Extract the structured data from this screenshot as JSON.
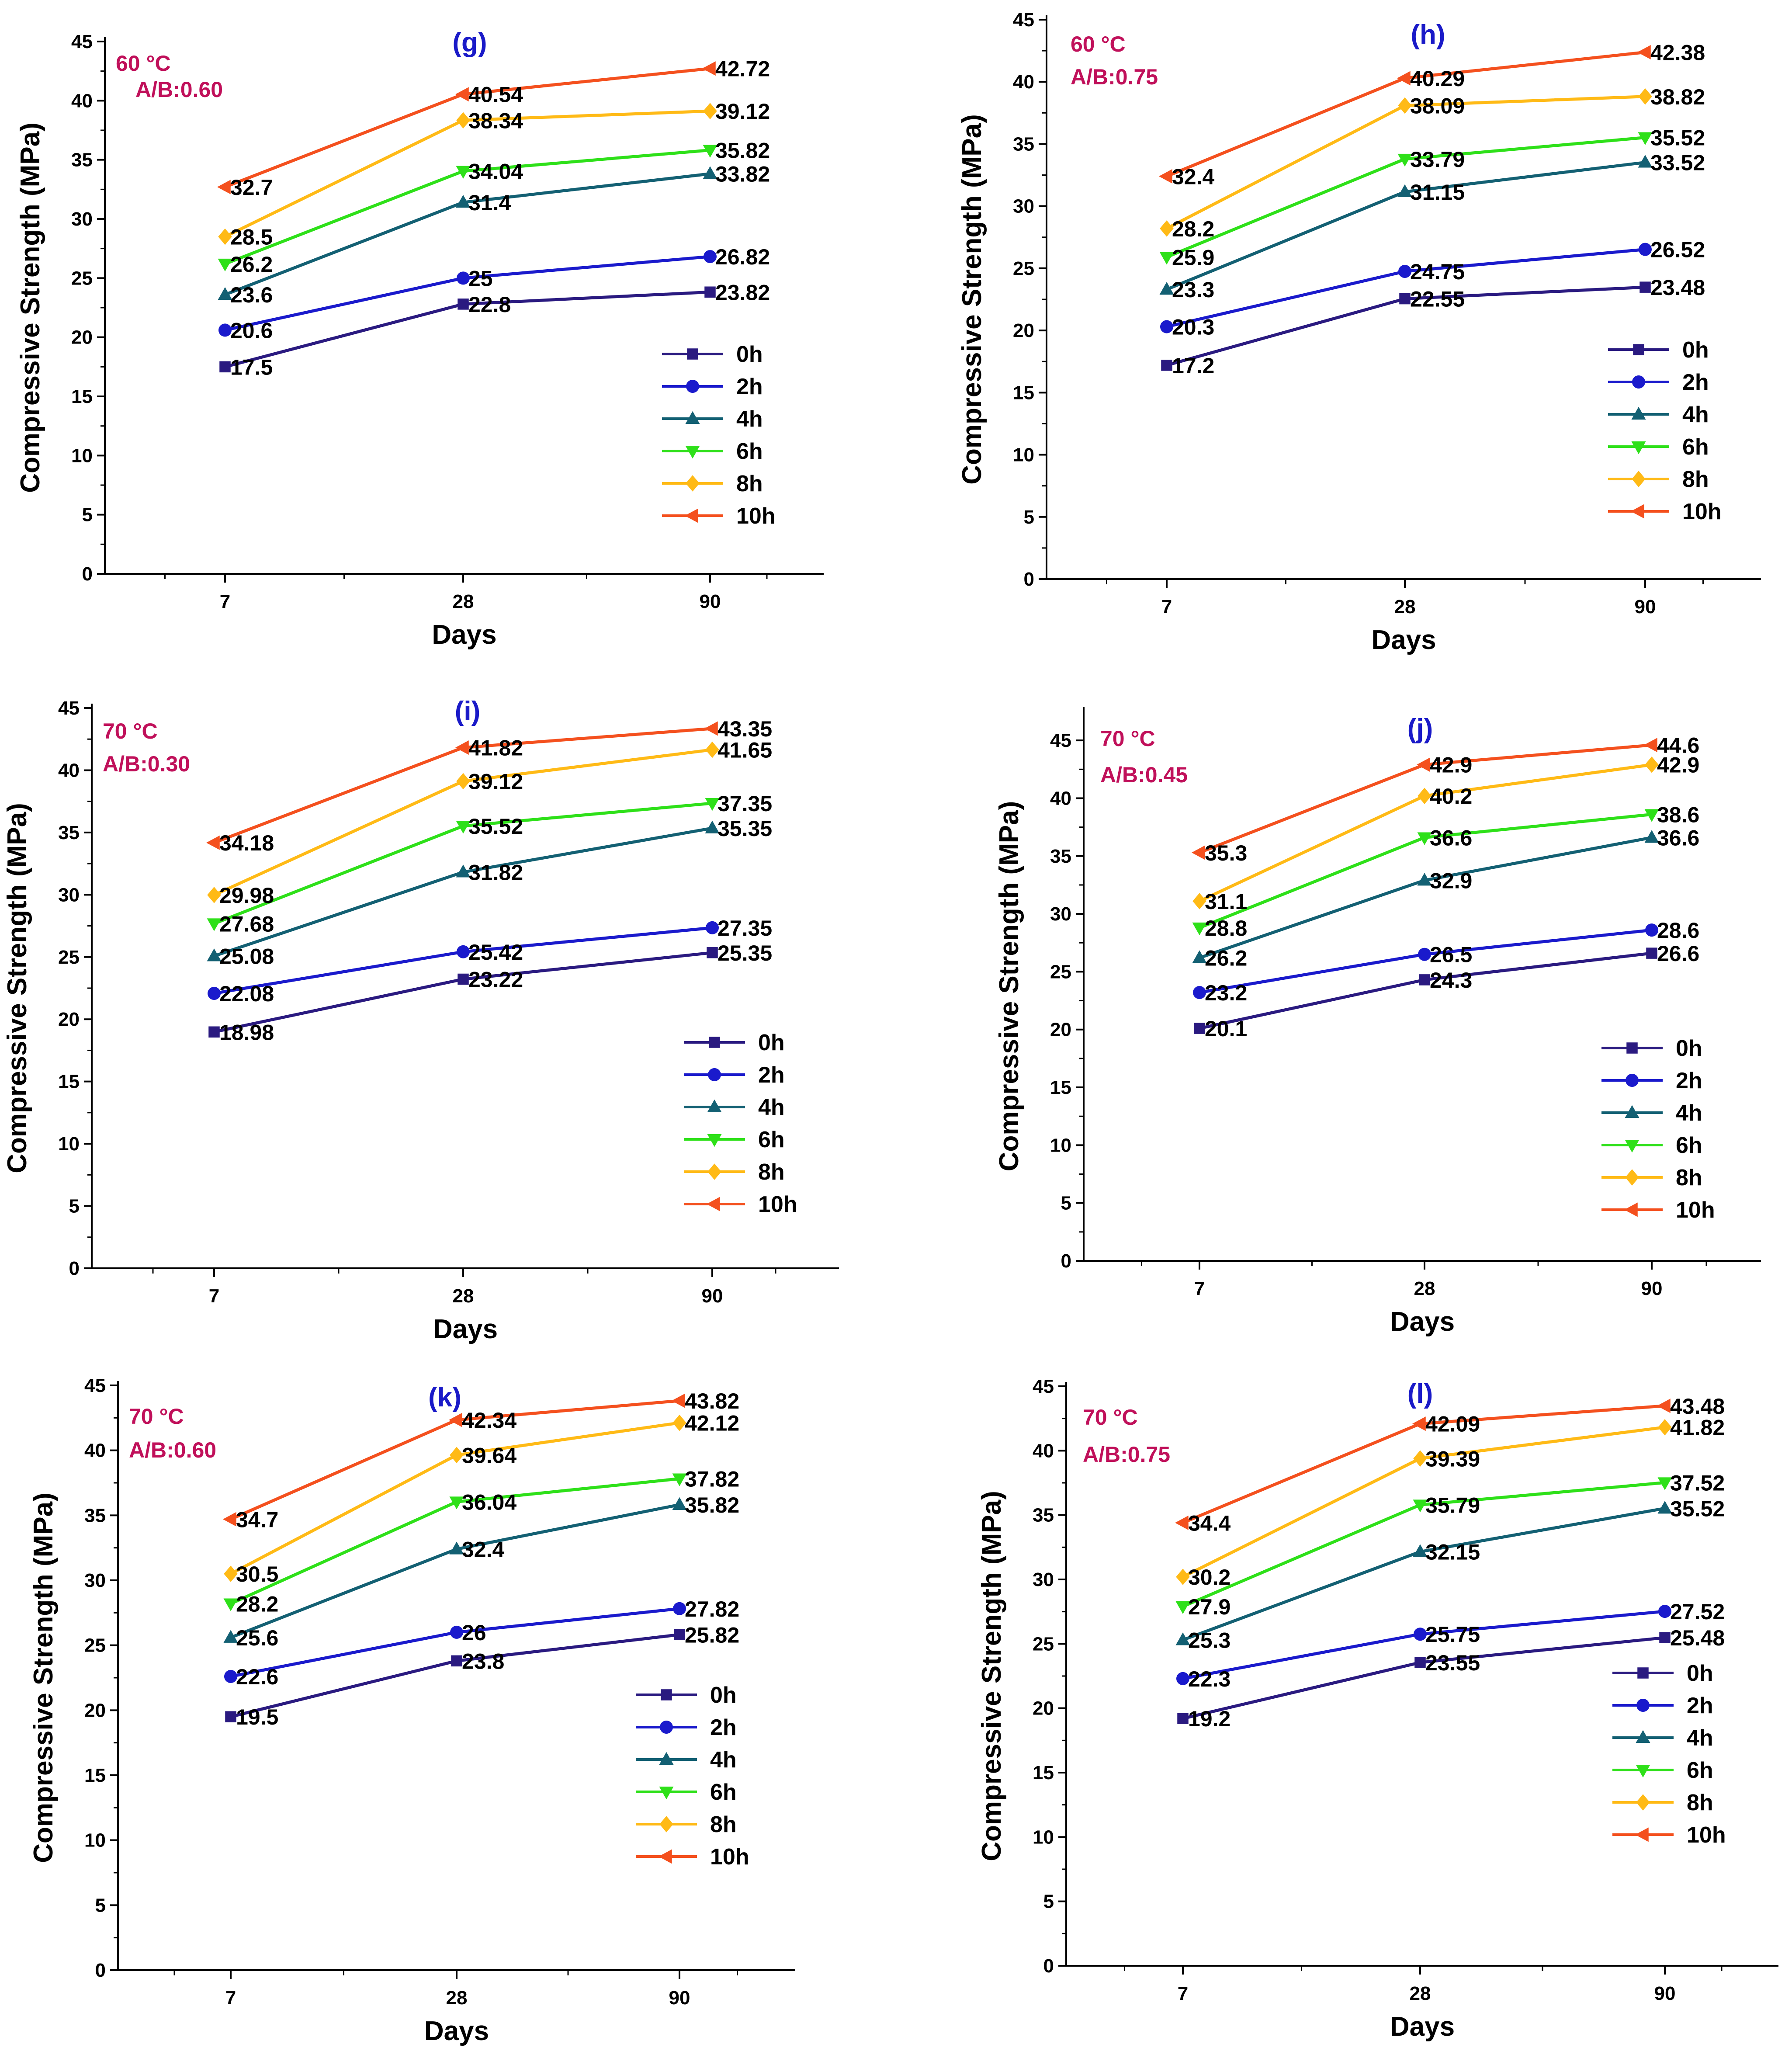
{
  "chart_data": [
    {
      "type": "line",
      "panel": "(g)",
      "temperature": "60 °C",
      "ab_ratio": "A/B:0.60",
      "categories": [
        "7",
        "28",
        "90"
      ],
      "xlabel": "Days",
      "ylabel": "Compressive Strength (MPa)",
      "ylim": [
        0,
        45
      ],
      "yticks": [
        0,
        5,
        10,
        15,
        20,
        25,
        30,
        35,
        40,
        45
      ],
      "legend": "bottom-right",
      "series": [
        {
          "name": "0h",
          "values": [
            17.5,
            22.8,
            23.82
          ],
          "labels": [
            "17.5",
            "22.8",
            "23.82"
          ]
        },
        {
          "name": "2h",
          "values": [
            20.6,
            25,
            26.82
          ],
          "labels": [
            "20.6",
            "25",
            "26.82"
          ]
        },
        {
          "name": "4h",
          "values": [
            23.6,
            31.4,
            33.82
          ],
          "labels": [
            "23.6",
            "31.4",
            "33.82"
          ]
        },
        {
          "name": "6h",
          "values": [
            26.2,
            34.04,
            35.82
          ],
          "labels": [
            "26.2",
            "34.04",
            "35.82"
          ]
        },
        {
          "name": "8h",
          "values": [
            28.5,
            38.34,
            39.12
          ],
          "labels": [
            "28.5",
            "38.34",
            "39.12"
          ]
        },
        {
          "name": "10h",
          "values": [
            32.7,
            40.54,
            42.72
          ],
          "labels": [
            "32.7",
            "40.54",
            "42.72"
          ]
        }
      ]
    },
    {
      "type": "line",
      "panel": "(h)",
      "temperature": "60 °C",
      "ab_ratio": "A/B:0.75",
      "categories": [
        "7",
        "28",
        "90"
      ],
      "xlabel": "Days",
      "ylabel": "Compressive Strength (MPa)",
      "ylim": [
        0,
        45
      ],
      "yticks": [
        0,
        5,
        10,
        15,
        20,
        25,
        30,
        35,
        40,
        45
      ],
      "legend": "bottom-right",
      "series": [
        {
          "name": "0h",
          "values": [
            17.2,
            22.55,
            23.48
          ],
          "labels": [
            "17.2",
            "22.55",
            "23.48"
          ]
        },
        {
          "name": "2h",
          "values": [
            20.3,
            24.75,
            26.52
          ],
          "labels": [
            "20.3",
            "24.75",
            "26.52"
          ]
        },
        {
          "name": "4h",
          "values": [
            23.3,
            31.15,
            33.52
          ],
          "labels": [
            "23.3",
            "31.15",
            "33.52"
          ]
        },
        {
          "name": "6h",
          "values": [
            25.9,
            33.79,
            35.52
          ],
          "labels": [
            "25.9",
            "33.79",
            "35.52"
          ]
        },
        {
          "name": "8h",
          "values": [
            28.2,
            38.09,
            38.82
          ],
          "labels": [
            "28.2",
            "38.09",
            "38.82"
          ]
        },
        {
          "name": "10h",
          "values": [
            32.4,
            40.29,
            42.38
          ],
          "labels": [
            "32.4",
            "40.29",
            "42.38"
          ]
        }
      ]
    },
    {
      "type": "line",
      "panel": "(i)",
      "temperature": "70 °C",
      "ab_ratio": "A/B:0.30",
      "categories": [
        "7",
        "28",
        "90"
      ],
      "xlabel": "Days",
      "ylabel": "Compressive Strength (MPa)",
      "ylim": [
        0,
        45
      ],
      "yticks": [
        0,
        5,
        10,
        15,
        20,
        25,
        30,
        35,
        40,
        45
      ],
      "legend": "bottom-right",
      "series": [
        {
          "name": "0h",
          "values": [
            18.98,
            23.22,
            25.35
          ],
          "labels": [
            "18.98",
            "23.22",
            "25.35"
          ]
        },
        {
          "name": "2h",
          "values": [
            22.08,
            25.42,
            27.35
          ],
          "labels": [
            "22.08",
            "25.42",
            "27.35"
          ]
        },
        {
          "name": "4h",
          "values": [
            25.08,
            31.82,
            35.35
          ],
          "labels": [
            "25.08",
            "31.82",
            "35.35"
          ]
        },
        {
          "name": "6h",
          "values": [
            27.68,
            35.52,
            37.35
          ],
          "labels": [
            "27.68",
            "35.52",
            "37.35"
          ]
        },
        {
          "name": "8h",
          "values": [
            29.98,
            39.12,
            41.65
          ],
          "labels": [
            "29.98",
            "39.12",
            "41.65"
          ]
        },
        {
          "name": "10h",
          "values": [
            34.18,
            41.82,
            43.35
          ],
          "labels": [
            "34.18",
            "41.82",
            "43.35"
          ]
        }
      ]
    },
    {
      "type": "line",
      "panel": "(j)",
      "temperature": "70 °C",
      "ab_ratio": "A/B:0.45",
      "categories": [
        "7",
        "28",
        "90"
      ],
      "xlabel": "Days",
      "ylabel": "Compressive Strength (MPa)",
      "ylim": [
        0,
        47.5
      ],
      "yticks": [
        0,
        5,
        10,
        15,
        20,
        25,
        30,
        35,
        40,
        45
      ],
      "legend": "bottom-right",
      "series": [
        {
          "name": "0h",
          "values": [
            20.1,
            24.3,
            26.6
          ],
          "labels": [
            "20.1",
            "24.3",
            "26.6"
          ]
        },
        {
          "name": "2h",
          "values": [
            23.2,
            26.5,
            28.6
          ],
          "labels": [
            "23.2",
            "26.5",
            "28.6"
          ]
        },
        {
          "name": "4h",
          "values": [
            26.2,
            32.9,
            36.6
          ],
          "labels": [
            "26.2",
            "32.9",
            "36.6"
          ]
        },
        {
          "name": "6h",
          "values": [
            28.8,
            36.6,
            38.6
          ],
          "labels": [
            "28.8",
            "36.6",
            "38.6"
          ]
        },
        {
          "name": "8h",
          "values": [
            31.1,
            40.2,
            42.9
          ],
          "labels": [
            "31.1",
            "40.2",
            "42.9"
          ]
        },
        {
          "name": "10h",
          "values": [
            35.3,
            42.9,
            44.6
          ],
          "labels": [
            "35.3",
            "42.9",
            "44.6"
          ]
        }
      ]
    },
    {
      "type": "line",
      "panel": "(k)",
      "temperature": "70 °C",
      "ab_ratio": "A/B:0.60",
      "categories": [
        "7",
        "28",
        "90"
      ],
      "xlabel": "Days",
      "ylabel": "Compressive Strength (MPa)",
      "ylim": [
        0,
        45
      ],
      "yticks": [
        0,
        5,
        10,
        15,
        20,
        25,
        30,
        35,
        40,
        45
      ],
      "legend": "bottom-right",
      "series": [
        {
          "name": "0h",
          "values": [
            19.5,
            23.8,
            25.82
          ],
          "labels": [
            "19.5",
            "23.8",
            "25.82"
          ]
        },
        {
          "name": "2h",
          "values": [
            22.6,
            26,
            27.82
          ],
          "labels": [
            "22.6",
            "26",
            "27.82"
          ]
        },
        {
          "name": "4h",
          "values": [
            25.6,
            32.4,
            35.82
          ],
          "labels": [
            "25.6",
            "32.4",
            "35.82"
          ]
        },
        {
          "name": "6h",
          "values": [
            28.2,
            36.04,
            37.82
          ],
          "labels": [
            "28.2",
            "36.04",
            "37.82"
          ]
        },
        {
          "name": "8h",
          "values": [
            30.5,
            39.64,
            42.12
          ],
          "labels": [
            "30.5",
            "39.64",
            "42.12"
          ]
        },
        {
          "name": "10h",
          "values": [
            34.7,
            42.34,
            43.82
          ],
          "labels": [
            "34.7",
            "42.34",
            "43.82"
          ]
        }
      ]
    },
    {
      "type": "line",
      "panel": "(l)",
      "temperature": "70 °C",
      "ab_ratio": "A/B:0.75",
      "categories": [
        "7",
        "28",
        "90"
      ],
      "xlabel": "Days",
      "ylabel": "Compressive Strength (MPa)",
      "ylim": [
        0,
        45
      ],
      "yticks": [
        0,
        5,
        10,
        15,
        20,
        25,
        30,
        35,
        40,
        45
      ],
      "legend": "bottom-right",
      "series": [
        {
          "name": "0h",
          "values": [
            19.2,
            23.55,
            25.48
          ],
          "labels": [
            "19.2",
            "23.55",
            "25.48"
          ]
        },
        {
          "name": "2h",
          "values": [
            22.3,
            25.75,
            27.52
          ],
          "labels": [
            "22.3",
            "25.75",
            "27.52"
          ]
        },
        {
          "name": "4h",
          "values": [
            25.3,
            32.15,
            35.52
          ],
          "labels": [
            "25.3",
            "32.15",
            "35.52"
          ]
        },
        {
          "name": "6h",
          "values": [
            27.9,
            35.79,
            37.52
          ],
          "labels": [
            "27.9",
            "35.79",
            "37.52"
          ]
        },
        {
          "name": "8h",
          "values": [
            30.2,
            39.39,
            41.82
          ],
          "labels": [
            "30.2",
            "39.39",
            "41.82"
          ]
        },
        {
          "name": "10h",
          "values": [
            34.4,
            42.09,
            43.48
          ],
          "labels": [
            "34.4",
            "42.09",
            "43.48"
          ]
        }
      ]
    }
  ],
  "series_style": [
    {
      "name": "0h",
      "color": "#2A1A80",
      "marker": "square"
    },
    {
      "name": "2h",
      "color": "#1A1ACC",
      "marker": "circle"
    },
    {
      "name": "4h",
      "color": "#136073",
      "marker": "triangle-up"
    },
    {
      "name": "6h",
      "color": "#2EE019",
      "marker": "triangle-down"
    },
    {
      "name": "8h",
      "color": "#FFBA16",
      "marker": "diamond"
    },
    {
      "name": "10h",
      "color": "#F4501E",
      "marker": "triangle-left"
    }
  ],
  "colors": {
    "condition_label": "#C0105A",
    "panel_letter": "#1A1AC8",
    "axis": "#000000"
  }
}
